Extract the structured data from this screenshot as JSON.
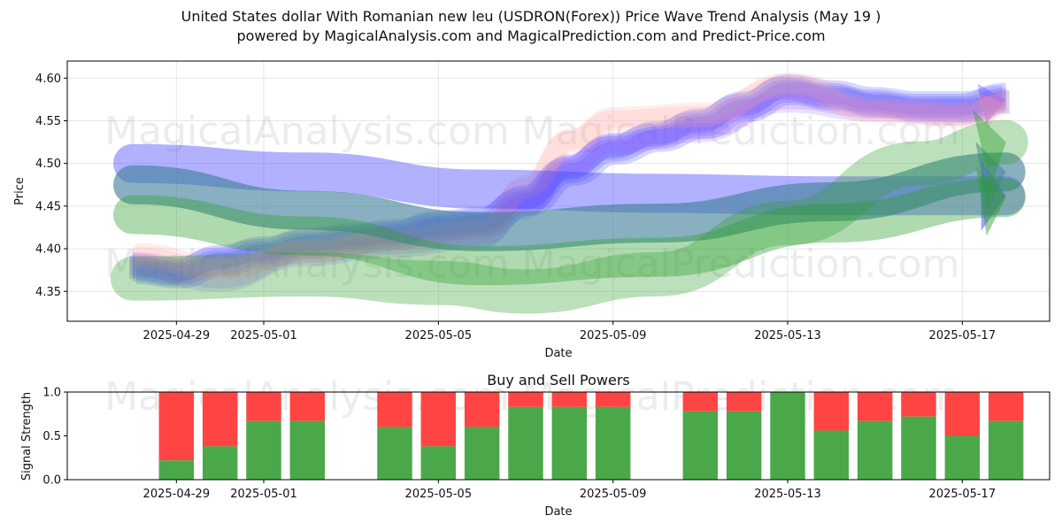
{
  "header": {
    "title_line1": "United States dollar With Romanian new leu (USDRON(Forex)) Price Wave Trend Analysis (May 19 )",
    "title_line2": "powered by MagicalAnalysis.com and MagicalPrediction.com and Predict-Price.com"
  },
  "watermarks": [
    "MagicalAnalysis.com",
    "MagicalPrediction.com"
  ],
  "chart_data": [
    {
      "type": "line",
      "title": "",
      "xlabel": "Date",
      "ylabel": "Price",
      "x_start": "2025-04-27",
      "xlim": [
        "2025-04-26 12:00",
        "2025-05-19 00:00"
      ],
      "ylim": [
        4.315,
        4.62
      ],
      "x_ticks": [
        "2025-04-29",
        "2025-05-01",
        "2025-05-05",
        "2025-05-09",
        "2025-05-13",
        "2025-05-17"
      ],
      "y_ticks": [
        4.35,
        4.4,
        4.45,
        4.5,
        4.55,
        4.6
      ],
      "grid": true,
      "colors": {
        "blue": "#4444ff",
        "green": "#2e9e2e",
        "teal": "#3f7f9a",
        "pink": "#ff9999",
        "purple": "#9966ff"
      },
      "series": [
        {
          "color": "blue",
          "x": [
            "2025-04-28",
            "2025-04-29",
            "2025-04-30",
            "2025-05-01",
            "2025-05-02",
            "2025-05-03",
            "2025-05-04",
            "2025-05-05",
            "2025-05-06",
            "2025-05-07",
            "2025-05-08",
            "2025-05-09",
            "2025-05-10",
            "2025-05-11",
            "2025-05-12",
            "2025-05-13",
            "2025-05-14",
            "2025-05-15",
            "2025-05-16",
            "2025-05-17",
            "2025-05-18"
          ],
          "y": [
            4.375,
            4.37,
            4.385,
            4.395,
            4.405,
            4.41,
            4.415,
            4.425,
            4.43,
            4.455,
            4.49,
            4.515,
            4.53,
            4.545,
            4.565,
            4.585,
            4.578,
            4.57,
            4.565,
            4.565,
            4.575
          ]
        },
        {
          "color": "purple",
          "x": [
            "2025-04-28",
            "2025-04-30",
            "2025-05-02",
            "2025-05-04",
            "2025-05-06",
            "2025-05-07",
            "2025-05-08",
            "2025-05-09",
            "2025-05-11",
            "2025-05-13",
            "2025-05-15",
            "2025-05-17",
            "2025-05-18"
          ],
          "y": [
            4.385,
            4.365,
            4.395,
            4.405,
            4.415,
            4.45,
            4.5,
            4.525,
            4.54,
            4.575,
            4.565,
            4.56,
            4.575
          ]
        },
        {
          "color": "pink",
          "x": [
            "2025-04-28",
            "2025-04-30",
            "2025-05-02",
            "2025-05-04",
            "2025-05-06",
            "2025-05-07",
            "2025-05-08",
            "2025-05-09",
            "2025-05-11",
            "2025-05-13",
            "2025-05-15",
            "2025-05-17",
            "2025-05-18"
          ],
          "y": [
            4.39,
            4.375,
            4.395,
            4.41,
            4.42,
            4.47,
            4.525,
            4.55,
            4.555,
            4.59,
            4.56,
            4.555,
            4.57
          ]
        },
        {
          "color": "blue",
          "x": [
            "2025-04-28",
            "2025-05-02",
            "2025-05-06",
            "2025-05-10",
            "2025-05-14",
            "2025-05-18"
          ],
          "y": [
            4.5,
            4.49,
            4.47,
            4.465,
            4.462,
            4.462
          ]
        },
        {
          "color": "teal",
          "x": [
            "2025-04-28",
            "2025-05-02",
            "2025-05-06",
            "2025-05-10",
            "2025-05-14",
            "2025-05-18"
          ],
          "y": [
            4.475,
            4.445,
            4.42,
            4.43,
            4.455,
            4.49
          ]
        },
        {
          "color": "green",
          "x": [
            "2025-04-28",
            "2025-05-02",
            "2025-05-06",
            "2025-05-10",
            "2025-05-14",
            "2025-05-18"
          ],
          "y": [
            4.44,
            4.415,
            4.38,
            4.39,
            4.43,
            4.46
          ]
        },
        {
          "color": "green",
          "x": [
            "2025-04-28",
            "2025-05-02",
            "2025-05-05",
            "2025-05-07",
            "2025-05-10",
            "2025-05-13",
            "2025-05-16",
            "2025-05-18"
          ],
          "y": [
            4.365,
            4.37,
            4.36,
            4.35,
            4.37,
            4.43,
            4.5,
            4.525
          ]
        }
      ]
    },
    {
      "type": "bar",
      "title": "Buy and Sell Powers",
      "xlabel": "Date",
      "ylabel": "Signal Strength",
      "ylim": [
        0,
        1.0
      ],
      "y_ticks": [
        0.0,
        0.5,
        1.0
      ],
      "x_ticks": [
        "2025-04-29",
        "2025-05-01",
        "2025-05-05",
        "2025-05-09",
        "2025-05-13",
        "2025-05-17"
      ],
      "colors": {
        "buy": "#4aa84a",
        "sell": "#ff4444"
      },
      "dates": [
        "2025-04-29",
        "2025-04-30",
        "2025-05-01",
        "2025-05-02",
        "2025-05-04",
        "2025-05-05",
        "2025-05-06",
        "2025-05-07",
        "2025-05-08",
        "2025-05-09",
        "2025-05-11",
        "2025-05-12",
        "2025-05-13",
        "2025-05-14",
        "2025-05-15",
        "2025-05-16",
        "2025-05-17",
        "2025-05-18"
      ],
      "buy": [
        0.22,
        0.38,
        0.67,
        0.67,
        0.6,
        0.38,
        0.6,
        0.83,
        0.83,
        0.83,
        0.78,
        0.78,
        1.0,
        0.56,
        0.67,
        0.72,
        0.5,
        0.67
      ]
    }
  ]
}
